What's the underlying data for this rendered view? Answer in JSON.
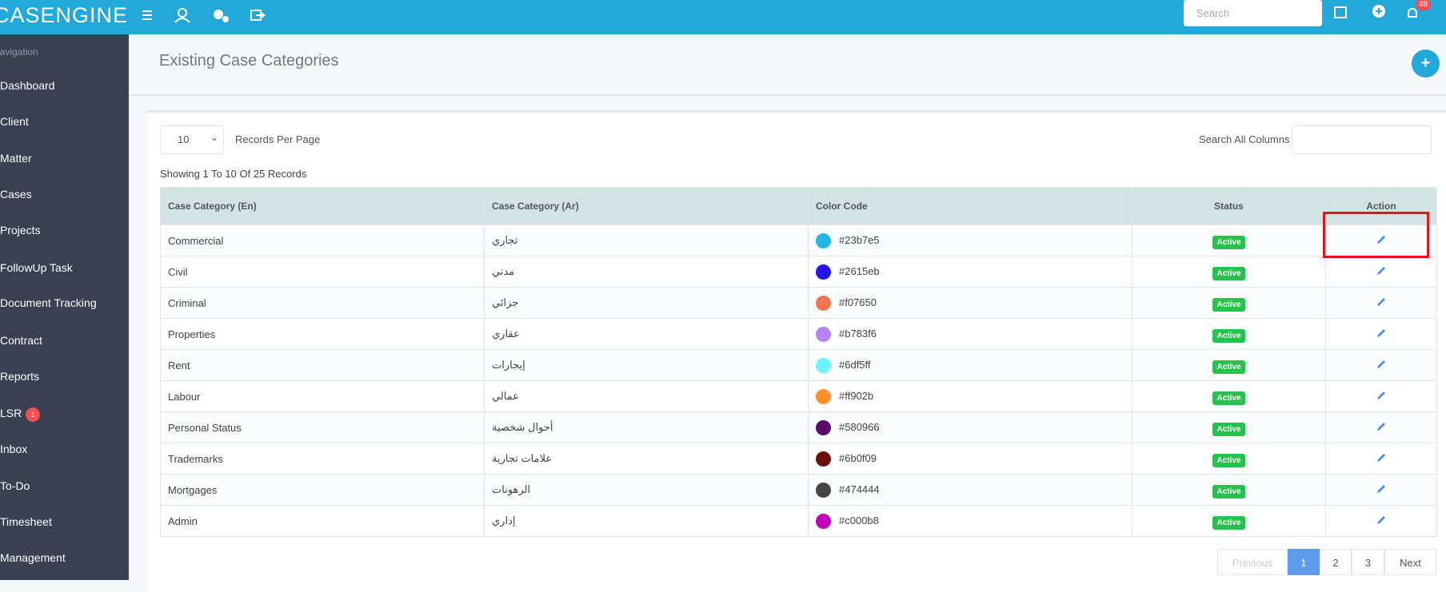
{
  "header": {
    "brand": "CASENGINE",
    "search_placeholder": "Search",
    "notification_count": "48"
  },
  "sidebar": {
    "title": "Navigation",
    "items": [
      {
        "label": "Dashboard"
      },
      {
        "label": "Client"
      },
      {
        "label": "Matter"
      },
      {
        "label": "Cases"
      },
      {
        "label": "Projects"
      },
      {
        "label": "FollowUp Task"
      },
      {
        "label": "Document Tracking"
      },
      {
        "label": "Contract"
      },
      {
        "label": "Reports"
      },
      {
        "label": "LSR",
        "badge": "1"
      },
      {
        "label": "Inbox"
      },
      {
        "label": "To-Do"
      },
      {
        "label": "Timesheet"
      },
      {
        "label": "Management"
      }
    ]
  },
  "page": {
    "title": "Existing Case Categories"
  },
  "controls": {
    "records_per_page_value": "10",
    "records_per_page_label": "Records Per Page",
    "search_label": "Search All Columns",
    "showing": "Showing 1 To 10 Of 25 Records"
  },
  "table": {
    "columns": [
      "Case Category (En)",
      "Case Category (Ar)",
      "Color Code",
      "Status",
      "Action"
    ],
    "rows": [
      [
        "Commercial",
        "تجاري",
        "#23b7e5",
        "Active"
      ],
      [
        "Civil",
        "مدني",
        "#2615eb",
        "Active"
      ],
      [
        "Criminal",
        "جزائي",
        "#f07650",
        "Active"
      ],
      [
        "Properties",
        "عقاري",
        "#b783f6",
        "Active"
      ],
      [
        "Rent",
        "إيجارات",
        "#6df5ff",
        "Active"
      ],
      [
        "Labour",
        "عمالي",
        "#ff902b",
        "Active"
      ],
      [
        "Personal Status",
        "أحوال شخصية",
        "#580966",
        "Active"
      ],
      [
        "Trademarks",
        "علامات تجارية",
        "#6b0f09",
        "Active"
      ],
      [
        "Mortgages",
        "الرهونات",
        "#474444",
        "Active"
      ],
      [
        "Admin",
        "إداري",
        "#c000b8",
        "Active"
      ]
    ]
  },
  "pagination": {
    "previous": "Previous",
    "pages": [
      "1",
      "2",
      "3"
    ],
    "next": "Next"
  }
}
